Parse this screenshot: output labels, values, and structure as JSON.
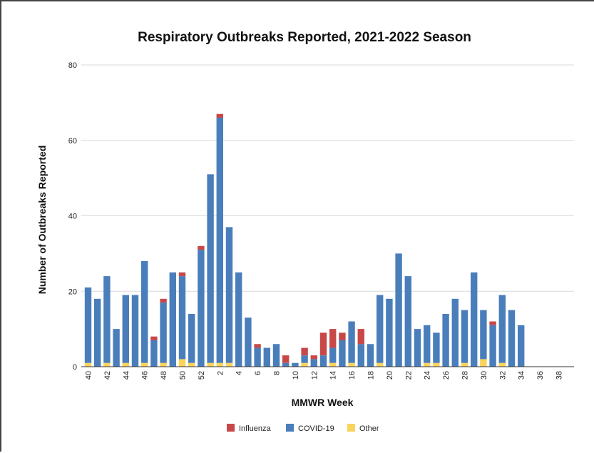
{
  "chart_data": {
    "type": "bar",
    "stacked": true,
    "title": "Respiratory Outbreaks Reported, 2021-2022 Season",
    "xlabel": "MMWR Week",
    "ylabel": "Number of Outbreaks Reported",
    "ylim": [
      0,
      80
    ],
    "yticks": [
      0,
      20,
      40,
      60,
      80
    ],
    "grid": true,
    "legend_position": "bottom",
    "categories": [
      "40",
      "41",
      "42",
      "43",
      "44",
      "45",
      "46",
      "47",
      "48",
      "49",
      "50",
      "51",
      "52",
      "1",
      "2",
      "3",
      "4",
      "5",
      "6",
      "7",
      "8",
      "9",
      "10",
      "11",
      "12",
      "13",
      "14",
      "15",
      "16",
      "17",
      "18",
      "19",
      "20",
      "21",
      "22",
      "23",
      "24",
      "25",
      "26",
      "27",
      "28",
      "29",
      "30",
      "31",
      "32",
      "33",
      "34",
      "35",
      "36",
      "37",
      "38"
    ],
    "xtick_labels": [
      "40",
      "",
      "42",
      "",
      "44",
      "",
      "46",
      "",
      "48",
      "",
      "50",
      "",
      "52",
      "",
      "2",
      "",
      "4",
      "",
      "6",
      "",
      "8",
      "",
      "10",
      "",
      "12",
      "",
      "14",
      "",
      "16",
      "",
      "18",
      "",
      "20",
      "",
      "22",
      "",
      "24",
      "",
      "26",
      "",
      "28",
      "",
      "30",
      "",
      "32",
      "",
      "34",
      "",
      "36",
      "",
      "38"
    ],
    "series": [
      {
        "name": "Other",
        "color": "#f9d45c",
        "values": [
          1,
          0,
          1,
          0,
          1,
          0,
          1,
          0,
          1,
          0,
          2,
          1,
          0,
          1,
          1,
          1,
          0,
          0,
          0,
          0,
          0,
          0,
          0,
          1,
          0,
          0,
          1,
          0,
          1,
          0,
          0,
          1,
          0,
          0,
          0,
          0,
          1,
          1,
          0,
          0,
          1,
          0,
          2,
          0,
          1,
          0,
          0,
          0,
          0,
          0,
          0
        ]
      },
      {
        "name": "COVID-19",
        "color": "#4a7ebb",
        "values": [
          20,
          18,
          23,
          10,
          18,
          19,
          27,
          7,
          16,
          25,
          22,
          13,
          31,
          50,
          65,
          36,
          25,
          13,
          5,
          5,
          6,
          1,
          1,
          2,
          2,
          3,
          4,
          7,
          11,
          6,
          6,
          18,
          18,
          30,
          24,
          10,
          10,
          8,
          14,
          18,
          14,
          25,
          13,
          11,
          18,
          15,
          11,
          0,
          0,
          0,
          0
        ]
      },
      {
        "name": "Influenza",
        "color": "#c84848",
        "values": [
          0,
          0,
          0,
          0,
          0,
          0,
          0,
          1,
          1,
          0,
          1,
          0,
          1,
          0,
          1,
          0,
          0,
          0,
          1,
          0,
          0,
          2,
          0,
          2,
          1,
          6,
          5,
          2,
          0,
          4,
          0,
          0,
          0,
          0,
          0,
          0,
          0,
          0,
          0,
          0,
          0,
          0,
          0,
          1,
          0,
          0,
          0,
          0,
          0,
          0,
          0
        ]
      }
    ],
    "legend": [
      {
        "name": "Influenza",
        "color": "#c84848"
      },
      {
        "name": "COVID-19",
        "color": "#4a7ebb"
      },
      {
        "name": "Other",
        "color": "#f9d45c"
      }
    ]
  }
}
